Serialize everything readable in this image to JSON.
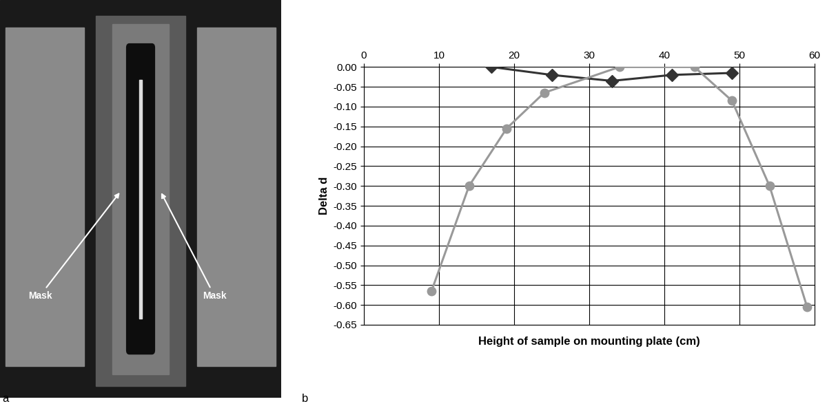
{
  "panel_labels": [
    "a",
    "b"
  ],
  "photo": {
    "annotations": [
      "Mask",
      "Mask"
    ]
  },
  "chart_data": {
    "type": "line",
    "x_label": "Height of sample on mounting plate (cm)",
    "y_label": "Delta d",
    "xlim": [
      0,
      60
    ],
    "xticks": [
      0,
      10,
      20,
      30,
      40,
      50,
      60
    ],
    "ylim": [
      -0.65,
      0
    ],
    "yticks": [
      {
        "value": 0,
        "label": "0.00"
      },
      {
        "value": -0.05,
        "label": "-0.05"
      },
      {
        "value": -0.1,
        "label": "-0.10"
      },
      {
        "value": -0.15,
        "label": "-0.15"
      },
      {
        "value": -0.2,
        "label": "-0.20"
      },
      {
        "value": -0.25,
        "label": "-0.25"
      },
      {
        "value": -0.3,
        "label": "-0.30"
      },
      {
        "value": -0.35,
        "label": "-0.35"
      },
      {
        "value": -0.4,
        "label": "-0.40"
      },
      {
        "value": -0.45,
        "label": "-0.45"
      },
      {
        "value": -0.5,
        "label": "-0.50"
      },
      {
        "value": -0.55,
        "label": "-0.55"
      },
      {
        "value": -0.6,
        "label": "-0.60"
      },
      {
        "value": -0.65,
        "label": "-0.65"
      }
    ],
    "grid": true,
    "series": [
      {
        "color": "#333333",
        "marker": "diamond",
        "line_style": "solid",
        "x": [
          17,
          25,
          33,
          41,
          49
        ],
        "values": [
          0,
          -0.02,
          -0.035,
          -0.02,
          -0.015
        ]
      },
      {
        "color": "#999999",
        "marker": "circle",
        "line_style": "solid",
        "x": [
          9,
          14,
          19,
          24,
          34,
          44,
          49,
          54,
          59
        ],
        "values": [
          -0.565,
          -0.3,
          -0.155,
          -0.065,
          0,
          0,
          -0.085,
          -0.3,
          -0.605
        ]
      }
    ]
  }
}
